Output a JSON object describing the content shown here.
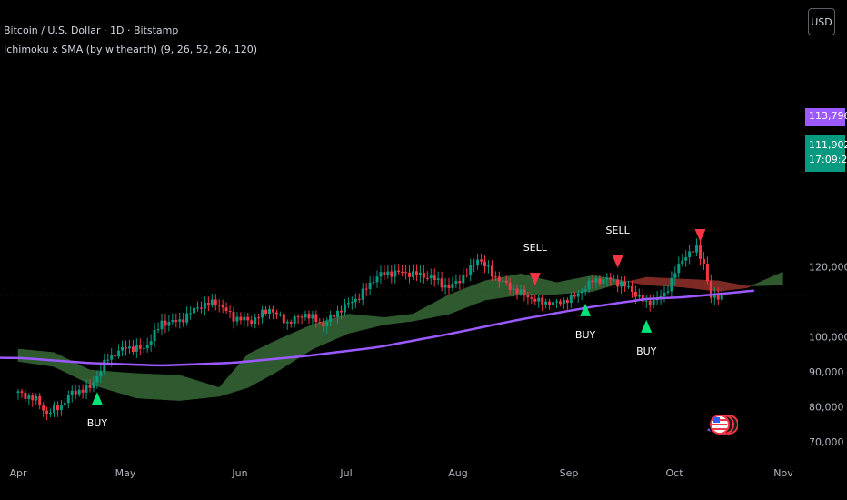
{
  "header": {
    "symbol": "Bitcoin / U.S. Dollar · 1D · Bitstamp",
    "indicator": "Ichimoku x SMA (by withearth) (9, 26, 52, 26, 120)",
    "currency_button": "USD"
  },
  "price_labels": {
    "sma_value": "113,796",
    "last_price": "111,902",
    "countdown": "17:09:29"
  },
  "colors": {
    "background": "#000000",
    "candle_up": "#089981",
    "candle_down": "#f23645",
    "cloud_bull": "#2f5a2f",
    "cloud_bear": "#7d2a24",
    "sma_line": "#9c59ff",
    "buy_marker": "#00e676",
    "sell_marker": "#f23645"
  },
  "chart_data": {
    "type": "candlestick",
    "y_axis": {
      "ticks": [
        70000,
        80000,
        90000,
        100000,
        110000,
        120000
      ],
      "tick_labels": [
        "70,000",
        "80,000",
        "90,000",
        "100,000",
        "",
        "120,000"
      ],
      "ylim": [
        69000,
        127800
      ]
    },
    "x_axis": {
      "ticks": [
        "Apr",
        "May",
        "Jun",
        "Jul",
        "Aug",
        "Sep",
        "Oct",
        "Nov"
      ]
    },
    "last_price_line": 111902,
    "sma_120": [
      {
        "day": 0,
        "v": 94000
      },
      {
        "day": 20,
        "v": 92500
      },
      {
        "day": 40,
        "v": 91800
      },
      {
        "day": 60,
        "v": 92600
      },
      {
        "day": 80,
        "v": 94500
      },
      {
        "day": 100,
        "v": 97000
      },
      {
        "day": 120,
        "v": 100800
      },
      {
        "day": 140,
        "v": 105000
      },
      {
        "day": 160,
        "v": 108600
      },
      {
        "day": 175,
        "v": 110800
      },
      {
        "day": 185,
        "v": 111300
      },
      {
        "day": 195,
        "v": 112200
      },
      {
        "day": 205,
        "v": 113200
      }
    ],
    "cloud": [
      {
        "day": 0,
        "a": 96500,
        "b": 93000
      },
      {
        "day": 10,
        "a": 95500,
        "b": 91500
      },
      {
        "day": 20,
        "a": 90500,
        "b": 86500
      },
      {
        "day": 33,
        "a": 89500,
        "b": 82500
      },
      {
        "day": 45,
        "a": 89000,
        "b": 81800
      },
      {
        "day": 56,
        "a": 85500,
        "b": 83000
      },
      {
        "day": 64,
        "a": 95000,
        "b": 85500
      },
      {
        "day": 72,
        "a": 99000,
        "b": 90000
      },
      {
        "day": 82,
        "a": 103500,
        "b": 96500
      },
      {
        "day": 92,
        "a": 106500,
        "b": 101000
      },
      {
        "day": 102,
        "a": 105500,
        "b": 103500
      },
      {
        "day": 110,
        "a": 106500,
        "b": 104500
      },
      {
        "day": 120,
        "a": 112000,
        "b": 106500
      },
      {
        "day": 130,
        "a": 116000,
        "b": 110500
      },
      {
        "day": 140,
        "a": 118000,
        "b": 112000
      },
      {
        "day": 150,
        "a": 115500,
        "b": 112200
      },
      {
        "day": 160,
        "a": 117500,
        "b": 113000
      },
      {
        "day": 166,
        "a": 116500,
        "b": 114800
      },
      {
        "day": 175,
        "a": 114800,
        "b": 117000
      },
      {
        "day": 185,
        "a": 114200,
        "b": 116500
      },
      {
        "day": 195,
        "a": 113000,
        "b": 116000
      },
      {
        "day": 203,
        "a": 114000,
        "b": 114500
      },
      {
        "day": 213,
        "a": 118500,
        "b": 114800
      }
    ],
    "price_anchors": [
      {
        "day": 0,
        "p": 84000
      },
      {
        "day": 5,
        "p": 82000
      },
      {
        "day": 8,
        "p": 78000
      },
      {
        "day": 12,
        "p": 80500
      },
      {
        "day": 15,
        "p": 84000
      },
      {
        "day": 20,
        "p": 85500
      },
      {
        "day": 25,
        "p": 94000
      },
      {
        "day": 30,
        "p": 97000
      },
      {
        "day": 35,
        "p": 96500
      },
      {
        "day": 40,
        "p": 104000
      },
      {
        "day": 45,
        "p": 104500
      },
      {
        "day": 50,
        "p": 108500
      },
      {
        "day": 55,
        "p": 110000
      },
      {
        "day": 60,
        "p": 105500
      },
      {
        "day": 65,
        "p": 104500
      },
      {
        "day": 70,
        "p": 108000
      },
      {
        "day": 75,
        "p": 104000
      },
      {
        "day": 80,
        "p": 106500
      },
      {
        "day": 85,
        "p": 103500
      },
      {
        "day": 90,
        "p": 108000
      },
      {
        "day": 95,
        "p": 111500
      },
      {
        "day": 100,
        "p": 117500
      },
      {
        "day": 105,
        "p": 118500
      },
      {
        "day": 110,
        "p": 118000
      },
      {
        "day": 115,
        "p": 117000
      },
      {
        "day": 120,
        "p": 114000
      },
      {
        "day": 125,
        "p": 118000
      },
      {
        "day": 128,
        "p": 122500
      },
      {
        "day": 133,
        "p": 117000
      },
      {
        "day": 138,
        "p": 113500
      },
      {
        "day": 145,
        "p": 110000
      },
      {
        "day": 150,
        "p": 109500
      },
      {
        "day": 155,
        "p": 111500
      },
      {
        "day": 160,
        "p": 116000
      },
      {
        "day": 165,
        "p": 116500
      },
      {
        "day": 170,
        "p": 114000
      },
      {
        "day": 175,
        "p": 109500
      },
      {
        "day": 180,
        "p": 112000
      },
      {
        "day": 183,
        "p": 118500
      },
      {
        "day": 186,
        "p": 123500
      },
      {
        "day": 189,
        "p": 125000
      },
      {
        "day": 191,
        "p": 121000
      },
      {
        "day": 193,
        "p": 111000
      },
      {
        "day": 196,
        "p": 111900
      }
    ],
    "signals": [
      {
        "type": "BUY",
        "day": 22,
        "label": "BUY"
      },
      {
        "type": "SELL",
        "day": 144,
        "label": "SELL"
      },
      {
        "type": "BUY",
        "day": 158,
        "label": "BUY"
      },
      {
        "type": "SELL",
        "day": 167,
        "label": "SELL"
      },
      {
        "type": "BUY",
        "day": 175,
        "label": "BUY"
      },
      {
        "type": "SELL",
        "day": 190,
        "label": ""
      }
    ]
  }
}
